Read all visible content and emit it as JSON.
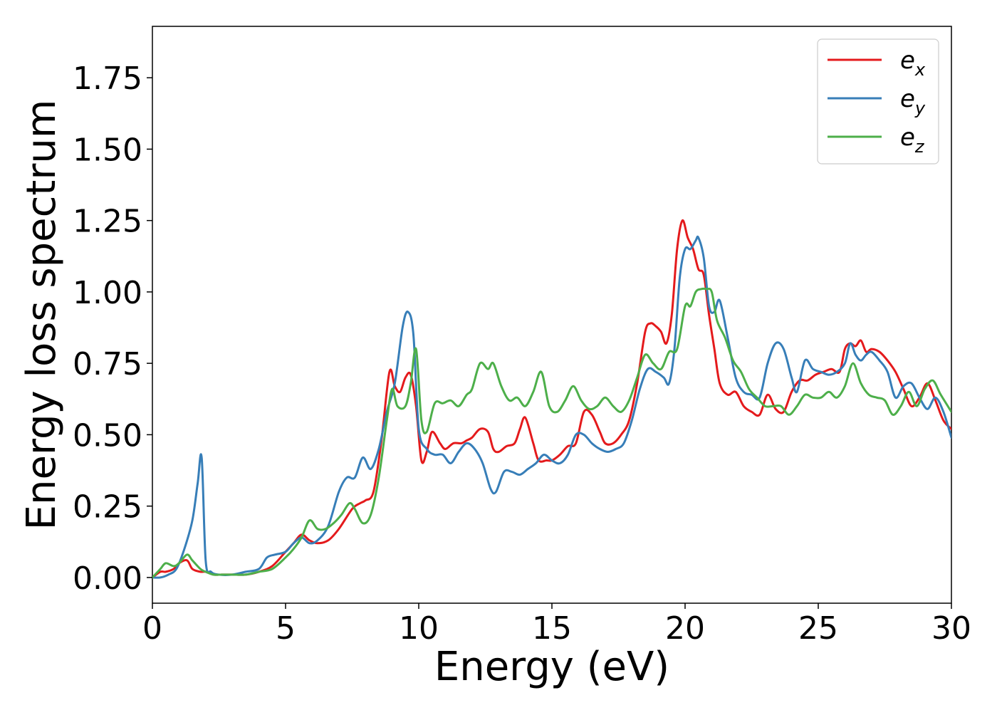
{
  "chart_data": {
    "type": "line",
    "title": "",
    "xlabel": "Energy (eV)",
    "ylabel": "Energy loss spectrum",
    "xlim": [
      0,
      30
    ],
    "ylim": [
      -0.09,
      1.93
    ],
    "xticks": [
      0,
      5,
      10,
      15,
      20,
      25,
      30
    ],
    "xtick_labels": [
      "0",
      "5",
      "10",
      "15",
      "20",
      "25",
      "30"
    ],
    "yticks": [
      0.0,
      0.25,
      0.5,
      0.75,
      1.0,
      1.25,
      1.5,
      1.75
    ],
    "ytick_labels": [
      "0.00",
      "0.25",
      "0.50",
      "0.75",
      "1.00",
      "1.25",
      "1.50",
      "1.75"
    ],
    "grid": false,
    "legend_position": "top-right",
    "series": [
      {
        "name": "e",
        "subscript": "x",
        "color": "#e41a1c",
        "x": [
          0,
          0.3,
          0.5,
          0.8,
          1.0,
          1.3,
          1.5,
          1.8,
          2.0,
          2.3,
          2.6,
          3.0,
          3.5,
          4.0,
          4.5,
          5.0,
          5.3,
          5.6,
          5.9,
          6.2,
          6.6,
          7.0,
          7.5,
          7.8,
          8.0,
          8.3,
          8.6,
          8.9,
          9.1,
          9.3,
          9.5,
          9.7,
          9.9,
          10.1,
          10.3,
          10.5,
          10.8,
          11.0,
          11.3,
          11.6,
          11.8,
          12.0,
          12.3,
          12.6,
          12.8,
          13.0,
          13.3,
          13.6,
          13.8,
          14.0,
          14.3,
          14.5,
          14.8,
          15.0,
          15.3,
          15.6,
          15.9,
          16.2,
          16.5,
          16.8,
          17.0,
          17.3,
          17.6,
          17.9,
          18.2,
          18.5,
          18.7,
          18.9,
          19.1,
          19.3,
          19.5,
          19.7,
          19.9,
          20.1,
          20.3,
          20.5,
          20.7,
          20.9,
          21.1,
          21.3,
          21.6,
          21.9,
          22.2,
          22.5,
          22.8,
          23.1,
          23.4,
          23.7,
          24.0,
          24.3,
          24.6,
          24.9,
          25.2,
          25.5,
          25.8,
          26.0,
          26.2,
          26.4,
          26.6,
          26.8,
          27.0,
          27.3,
          27.6,
          27.9,
          28.2,
          28.5,
          28.8,
          29.1,
          29.4,
          29.7,
          30.0
        ],
        "values": [
          0.0,
          0.02,
          0.02,
          0.03,
          0.05,
          0.06,
          0.03,
          0.02,
          0.02,
          0.01,
          0.01,
          0.01,
          0.01,
          0.02,
          0.04,
          0.09,
          0.12,
          0.15,
          0.13,
          0.12,
          0.13,
          0.17,
          0.24,
          0.26,
          0.27,
          0.3,
          0.48,
          0.72,
          0.67,
          0.65,
          0.7,
          0.71,
          0.6,
          0.41,
          0.44,
          0.51,
          0.47,
          0.45,
          0.47,
          0.47,
          0.48,
          0.49,
          0.52,
          0.51,
          0.45,
          0.44,
          0.46,
          0.47,
          0.52,
          0.56,
          0.47,
          0.41,
          0.41,
          0.41,
          0.43,
          0.46,
          0.47,
          0.58,
          0.57,
          0.51,
          0.47,
          0.47,
          0.5,
          0.55,
          0.68,
          0.86,
          0.89,
          0.88,
          0.86,
          0.82,
          0.92,
          1.15,
          1.25,
          1.19,
          1.15,
          1.08,
          1.06,
          0.92,
          0.8,
          0.68,
          0.64,
          0.65,
          0.6,
          0.58,
          0.57,
          0.64,
          0.59,
          0.58,
          0.65,
          0.69,
          0.69,
          0.71,
          0.72,
          0.73,
          0.72,
          0.8,
          0.82,
          0.81,
          0.83,
          0.79,
          0.8,
          0.79,
          0.76,
          0.72,
          0.66,
          0.6,
          0.63,
          0.68,
          0.62,
          0.55,
          0.52
        ]
      },
      {
        "name": "e",
        "subscript": "y",
        "color": "#377eb8",
        "x": [
          0,
          0.3,
          0.6,
          0.9,
          1.2,
          1.5,
          1.7,
          1.85,
          2.0,
          2.2,
          2.5,
          3.0,
          3.5,
          4.0,
          4.3,
          4.6,
          5.0,
          5.3,
          5.6,
          5.9,
          6.2,
          6.6,
          7.0,
          7.3,
          7.6,
          7.9,
          8.2,
          8.5,
          8.8,
          9.1,
          9.4,
          9.6,
          9.8,
          10.0,
          10.3,
          10.6,
          10.9,
          11.2,
          11.5,
          11.8,
          12.1,
          12.4,
          12.7,
          12.9,
          13.2,
          13.5,
          13.8,
          14.1,
          14.4,
          14.7,
          15.0,
          15.3,
          15.6,
          15.9,
          16.2,
          16.5,
          16.8,
          17.1,
          17.4,
          17.7,
          18.0,
          18.3,
          18.6,
          18.9,
          19.2,
          19.4,
          19.6,
          19.8,
          20.0,
          20.2,
          20.4,
          20.5,
          20.7,
          20.9,
          21.1,
          21.3,
          21.6,
          21.9,
          22.2,
          22.5,
          22.8,
          23.1,
          23.4,
          23.7,
          24.0,
          24.2,
          24.5,
          24.8,
          25.1,
          25.4,
          25.7,
          26.0,
          26.2,
          26.4,
          26.6,
          26.8,
          27.0,
          27.3,
          27.6,
          27.9,
          28.2,
          28.5,
          28.8,
          29.1,
          29.4,
          29.7,
          30.0
        ],
        "values": [
          0.0,
          0.0,
          0.01,
          0.03,
          0.1,
          0.2,
          0.33,
          0.42,
          0.06,
          0.02,
          0.01,
          0.01,
          0.02,
          0.03,
          0.07,
          0.08,
          0.09,
          0.12,
          0.14,
          0.12,
          0.13,
          0.18,
          0.3,
          0.35,
          0.35,
          0.42,
          0.38,
          0.45,
          0.58,
          0.68,
          0.88,
          0.93,
          0.85,
          0.52,
          0.45,
          0.43,
          0.43,
          0.4,
          0.44,
          0.47,
          0.45,
          0.4,
          0.31,
          0.3,
          0.37,
          0.37,
          0.36,
          0.38,
          0.4,
          0.43,
          0.41,
          0.4,
          0.43,
          0.5,
          0.5,
          0.47,
          0.45,
          0.44,
          0.45,
          0.47,
          0.55,
          0.66,
          0.73,
          0.72,
          0.7,
          0.68,
          0.8,
          1.05,
          1.15,
          1.15,
          1.18,
          1.19,
          1.12,
          0.95,
          0.93,
          0.97,
          0.84,
          0.7,
          0.65,
          0.64,
          0.63,
          0.75,
          0.82,
          0.8,
          0.7,
          0.65,
          0.76,
          0.73,
          0.72,
          0.71,
          0.72,
          0.75,
          0.82,
          0.78,
          0.76,
          0.78,
          0.79,
          0.76,
          0.72,
          0.63,
          0.67,
          0.68,
          0.63,
          0.59,
          0.63,
          0.58,
          0.49
        ]
      },
      {
        "name": "e",
        "subscript": "z",
        "color": "#4daf4a",
        "x": [
          0,
          0.3,
          0.5,
          0.8,
          1.0,
          1.3,
          1.5,
          1.8,
          2.0,
          2.3,
          2.6,
          3.0,
          3.5,
          4.0,
          4.5,
          5.0,
          5.3,
          5.6,
          5.9,
          6.2,
          6.5,
          6.8,
          7.1,
          7.4,
          7.6,
          7.9,
          8.2,
          8.5,
          8.8,
          9.0,
          9.2,
          9.5,
          9.7,
          9.9,
          10.1,
          10.3,
          10.6,
          10.9,
          11.2,
          11.5,
          11.8,
          12.0,
          12.3,
          12.6,
          12.8,
          13.1,
          13.4,
          13.7,
          14.0,
          14.3,
          14.6,
          14.9,
          15.2,
          15.5,
          15.8,
          16.1,
          16.4,
          16.7,
          17.0,
          17.3,
          17.6,
          17.9,
          18.2,
          18.5,
          18.8,
          19.1,
          19.4,
          19.7,
          20.0,
          20.2,
          20.4,
          20.6,
          20.8,
          21.0,
          21.2,
          21.5,
          21.8,
          22.1,
          22.4,
          22.7,
          23.0,
          23.3,
          23.6,
          23.9,
          24.2,
          24.5,
          24.8,
          25.1,
          25.4,
          25.7,
          26.0,
          26.3,
          26.6,
          26.9,
          27.2,
          27.5,
          27.8,
          28.1,
          28.4,
          28.7,
          29.0,
          29.3,
          29.6,
          30.0
        ],
        "values": [
          0.0,
          0.03,
          0.05,
          0.04,
          0.05,
          0.08,
          0.06,
          0.03,
          0.02,
          0.01,
          0.01,
          0.01,
          0.01,
          0.02,
          0.03,
          0.07,
          0.1,
          0.14,
          0.2,
          0.17,
          0.17,
          0.19,
          0.22,
          0.26,
          0.24,
          0.19,
          0.22,
          0.35,
          0.55,
          0.66,
          0.6,
          0.6,
          0.68,
          0.8,
          0.55,
          0.51,
          0.61,
          0.61,
          0.62,
          0.6,
          0.64,
          0.66,
          0.75,
          0.73,
          0.75,
          0.67,
          0.62,
          0.63,
          0.6,
          0.65,
          0.72,
          0.6,
          0.58,
          0.62,
          0.67,
          0.62,
          0.59,
          0.6,
          0.63,
          0.6,
          0.58,
          0.62,
          0.7,
          0.78,
          0.75,
          0.73,
          0.79,
          0.8,
          0.95,
          0.95,
          1.0,
          1.01,
          1.01,
          1.0,
          0.9,
          0.84,
          0.76,
          0.72,
          0.66,
          0.63,
          0.6,
          0.6,
          0.6,
          0.57,
          0.6,
          0.64,
          0.63,
          0.63,
          0.65,
          0.63,
          0.67,
          0.75,
          0.68,
          0.64,
          0.63,
          0.62,
          0.57,
          0.6,
          0.65,
          0.6,
          0.66,
          0.69,
          0.64,
          0.58
        ]
      }
    ]
  }
}
